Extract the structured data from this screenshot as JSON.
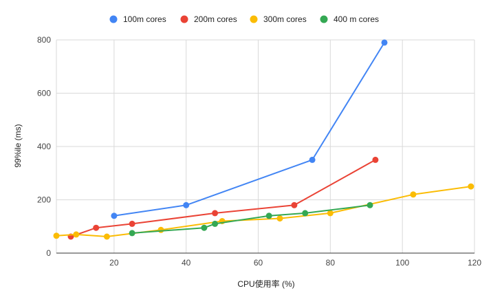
{
  "chart_data": {
    "type": "line",
    "title": "",
    "xlabel": "CPU使用率 (%)",
    "ylabel": "99%ile (ms)",
    "xlim": [
      4,
      120
    ],
    "ylim": [
      0,
      800
    ],
    "xticks": [
      20,
      40,
      60,
      80,
      100,
      120
    ],
    "yticks": [
      0,
      200,
      400,
      600,
      800
    ],
    "grid": true,
    "legend_position": "top",
    "series": [
      {
        "name": "100m cores",
        "color": "#4285f4",
        "points": [
          [
            20,
            140
          ],
          [
            40,
            180
          ],
          [
            75,
            350
          ],
          [
            95,
            790
          ]
        ]
      },
      {
        "name": "200m cores",
        "color": "#ea4335",
        "points": [
          [
            8,
            62
          ],
          [
            15,
            95
          ],
          [
            25,
            110
          ],
          [
            48,
            150
          ],
          [
            70,
            180
          ],
          [
            92.5,
            350
          ]
        ]
      },
      {
        "name": "300m cores",
        "color": "#fbbc04",
        "points": [
          [
            4,
            65
          ],
          [
            9.5,
            70
          ],
          [
            18,
            62
          ],
          [
            33,
            87
          ],
          [
            50,
            120
          ],
          [
            66,
            130
          ],
          [
            80,
            150
          ],
          [
            103,
            220
          ],
          [
            119,
            250
          ]
        ]
      },
      {
        "name": "400 m cores",
        "color": "#34a853",
        "points": [
          [
            25,
            75
          ],
          [
            45,
            95
          ],
          [
            48,
            110
          ],
          [
            63,
            140
          ],
          [
            73,
            150
          ],
          [
            91,
            180
          ]
        ]
      }
    ]
  }
}
